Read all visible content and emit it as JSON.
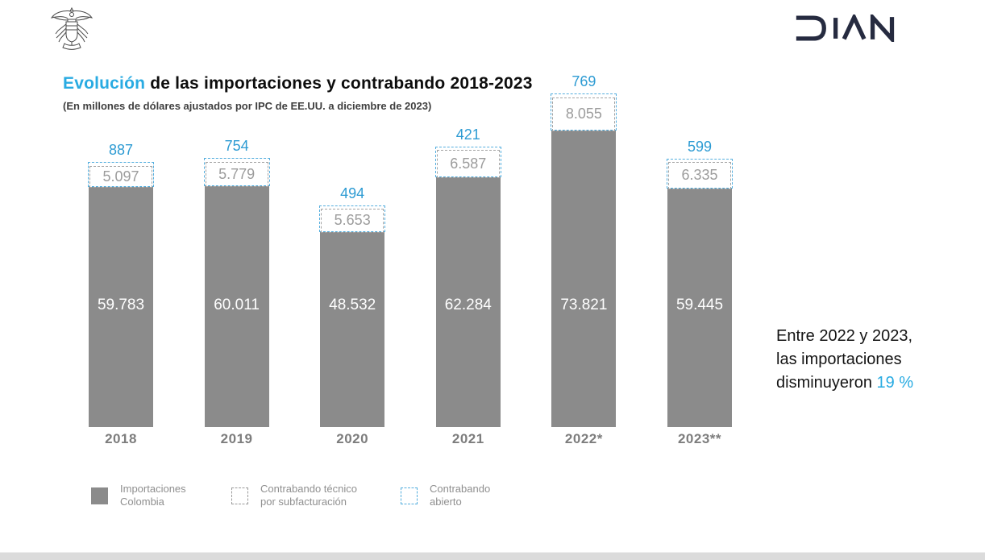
{
  "header": {
    "coat_of_arms_icon": "colombia-coat-of-arms",
    "dian_logo_icon": "dian-wordmark",
    "dian_logo_text": "DIAN"
  },
  "colors": {
    "bar_gray": "#8b8b8b",
    "accent_blue": "#2d9bd3",
    "title_blue": "#29abe2",
    "dashed_blue": "#54aede",
    "dashed_gray": "#a3a3a3",
    "legend_text": "#8f8f8f",
    "logo_navy": "#262b40"
  },
  "chart_data": {
    "type": "bar",
    "stacked": true,
    "title": "Evolución de las importaciones y contrabando 2018-2023",
    "title_highlight": "Evolución",
    "title_rest": " de las importaciones y contrabando 2018-2023",
    "subtitle": "(En millones de dólares ajustados por IPC de EE.UU. a diciembre de 2023)",
    "categories": [
      "2018",
      "2019",
      "2020",
      "2021",
      "2022*",
      "2023**"
    ],
    "series": [
      {
        "name": "Importaciones Colombia",
        "style": "solid-gray",
        "values": [
          59783,
          60011,
          48532,
          62284,
          73821,
          59445
        ],
        "labels": [
          "59.783",
          "60.011",
          "48.532",
          "62.284",
          "73.821",
          "59.445"
        ]
      },
      {
        "name": "Contrabando técnico por subfacturación",
        "style": "dashed-gray",
        "values": [
          5097,
          5779,
          5653,
          6587,
          8055,
          6335
        ],
        "labels": [
          "5.097",
          "5.779",
          "5.653",
          "6.587",
          "8.055",
          "6.335"
        ]
      },
      {
        "name": "Contrabando abierto",
        "style": "dashed-blue",
        "values": [
          887,
          754,
          494,
          421,
          769,
          599
        ],
        "labels": [
          "887",
          "754",
          "494",
          "421",
          "769",
          "599"
        ]
      }
    ],
    "ylim": [
      0,
      80000
    ],
    "grid": false,
    "legend_position": "bottom",
    "legend": {
      "items": [
        {
          "swatch": "solid-gray",
          "label_line1": "Importaciones",
          "label_line2": "Colombia"
        },
        {
          "swatch": "dashed-gray",
          "label_line1": "Contrabando técnico",
          "label_line2": "por subfacturación"
        },
        {
          "swatch": "dashed-blue",
          "label_line1": "Contrabando",
          "label_line2": "abierto"
        }
      ]
    },
    "annotation": {
      "line1": "Entre 2022 y 2023,",
      "line2": "las importaciones",
      "line3_prefix": "disminuyeron ",
      "line3_highlight": "19 %"
    }
  }
}
